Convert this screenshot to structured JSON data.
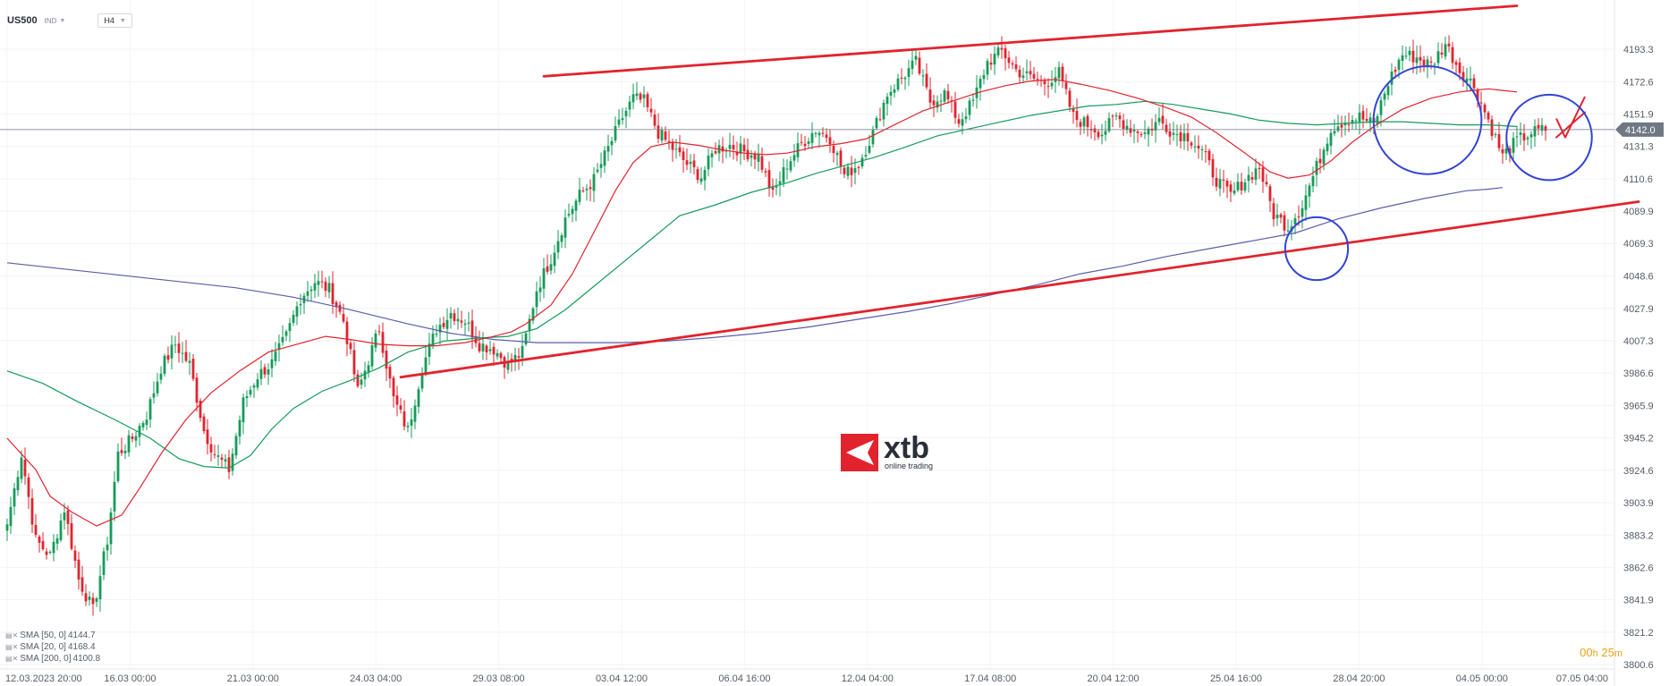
{
  "toolbar": {
    "symbol": "US500",
    "instrument_type": "IND",
    "timeframe": "H4"
  },
  "legend": [
    {
      "label": "SMA [50, 0]",
      "value": "4144.7",
      "color": "#169b5a"
    },
    {
      "label": "SMA [20, 0]",
      "value": "4168.4",
      "color": "#e1232e"
    },
    {
      "label": "SMA [200, 0]",
      "value": "4100.8",
      "color": "#5a5eaa"
    }
  ],
  "watermark": {
    "brand": "xtb",
    "tagline": "online trading",
    "color": "#e1232e"
  },
  "countdown": {
    "hours": "00",
    "hours_unit": "h",
    "minutes": "25",
    "minutes_unit": "m"
  },
  "chart_data": {
    "type": "candlestick",
    "title": "",
    "xlabel": "",
    "ylabel": "",
    "ylim": [
      3800.6,
      4214.0
    ],
    "y_ticks": [
      "4193.3",
      "4172.6",
      "4151.9",
      "4131.3",
      "4110.6",
      "4089.9",
      "4069.3",
      "4048.6",
      "4027.9",
      "4007.3",
      "3986.6",
      "3965.9",
      "3945.2",
      "3924.6",
      "3903.9",
      "3883.2",
      "3862.6",
      "3841.9",
      "3821.2",
      "3800.6"
    ],
    "x_tick_labels": [
      "12.03.2023  20:00",
      "16.03  00:00",
      "21.03  00:00",
      "24.03  04:00",
      "29.03  08:00",
      "03.04  12:00",
      "06.04  16:00",
      "12.04  04:00",
      "17.04  08:00",
      "20.04  12:00",
      "25.04  16:00",
      "28.04  20:00",
      "04.05  00:00",
      "07.05  04:00"
    ],
    "current_price": "4142.0",
    "current_price_value": 4142.0,
    "colors": {
      "up": "#169b5a",
      "down": "#e1232e",
      "trendline": "#e1232e",
      "circle": "#3144d4",
      "sma20": "#e1232e",
      "sma50": "#169b5a",
      "sma200": "#5a5eaa"
    },
    "close_path": [
      [
        0,
        3890
      ],
      [
        4,
        3935
      ],
      [
        8,
        3880
      ],
      [
        12,
        3870
      ],
      [
        16,
        3900
      ],
      [
        20,
        3855
      ],
      [
        24,
        3835
      ],
      [
        28,
        3880
      ],
      [
        31,
        3935
      ],
      [
        35,
        3945
      ],
      [
        39,
        3960
      ],
      [
        43,
        3990
      ],
      [
        47,
        4005
      ],
      [
        51,
        3992
      ],
      [
        55,
        3950
      ],
      [
        58,
        3935
      ],
      [
        62,
        3925
      ],
      [
        66,
        3968
      ],
      [
        70,
        3985
      ],
      [
        74,
        3993
      ],
      [
        78,
        4010
      ],
      [
        82,
        4035
      ],
      [
        86,
        4045
      ],
      [
        90,
        4040
      ],
      [
        94,
        4020
      ],
      [
        98,
        3975
      ],
      [
        101,
        3995
      ],
      [
        104,
        4015
      ],
      [
        108,
        3970
      ],
      [
        112,
        3950
      ],
      [
        116,
        3990
      ],
      [
        120,
        4015
      ],
      [
        124,
        4025
      ],
      [
        128,
        4020
      ],
      [
        132,
        4005
      ],
      [
        136,
        4002
      ],
      [
        140,
        3992
      ],
      [
        144,
        4000
      ],
      [
        148,
        4040
      ],
      [
        152,
        4060
      ],
      [
        156,
        4085
      ],
      [
        160,
        4100
      ],
      [
        164,
        4110
      ],
      [
        168,
        4130
      ],
      [
        172,
        4150
      ],
      [
        175,
        4162
      ],
      [
        178,
        4160
      ],
      [
        182,
        4140
      ],
      [
        186,
        4130
      ],
      [
        190,
        4120
      ],
      [
        194,
        4112
      ],
      [
        198,
        4130
      ],
      [
        202,
        4132
      ],
      [
        206,
        4128
      ],
      [
        210,
        4125
      ],
      [
        214,
        4100
      ],
      [
        218,
        4120
      ],
      [
        222,
        4133
      ],
      [
        226,
        4142
      ],
      [
        230,
        4137
      ],
      [
        234,
        4113
      ],
      [
        238,
        4120
      ],
      [
        242,
        4140
      ],
      [
        246,
        4165
      ],
      [
        250,
        4175
      ],
      [
        254,
        4185
      ],
      [
        258,
        4160
      ],
      [
        262,
        4165
      ],
      [
        266,
        4147
      ],
      [
        270,
        4160
      ],
      [
        274,
        4185
      ],
      [
        278,
        4192
      ],
      [
        282,
        4180
      ],
      [
        286,
        4175
      ],
      [
        290,
        4172
      ],
      [
        294,
        4178
      ],
      [
        298,
        4150
      ],
      [
        302,
        4145
      ],
      [
        306,
        4140
      ],
      [
        310,
        4150
      ],
      [
        314,
        4143
      ],
      [
        318,
        4140
      ],
      [
        322,
        4148
      ],
      [
        326,
        4140
      ],
      [
        330,
        4138
      ],
      [
        334,
        4128
      ],
      [
        338,
        4110
      ],
      [
        342,
        4100
      ],
      [
        346,
        4110
      ],
      [
        350,
        4118
      ],
      [
        354,
        4088
      ],
      [
        358,
        4080
      ],
      [
        362,
        4094
      ],
      [
        366,
        4118
      ],
      [
        370,
        4143
      ],
      [
        374,
        4148
      ],
      [
        378,
        4150
      ],
      [
        382,
        4145
      ],
      [
        386,
        4172
      ],
      [
        390,
        4190
      ],
      [
        394,
        4188
      ],
      [
        398,
        4183
      ],
      [
        402,
        4197
      ],
      [
        406,
        4180
      ],
      [
        410,
        4170
      ],
      [
        414,
        4148
      ],
      [
        418,
        4125
      ],
      [
        422,
        4135
      ],
      [
        426,
        4140
      ],
      [
        430,
        4142
      ]
    ],
    "candle_count": 431,
    "sma20": [
      [
        0,
        3945
      ],
      [
        8,
        3925
      ],
      [
        12,
        3908
      ],
      [
        18,
        3898
      ],
      [
        25,
        3889
      ],
      [
        32,
        3896
      ],
      [
        37,
        3913
      ],
      [
        43,
        3935
      ],
      [
        50,
        3957
      ],
      [
        57,
        3974
      ],
      [
        65,
        3988
      ],
      [
        73,
        4000
      ],
      [
        81,
        4005
      ],
      [
        89,
        4010
      ],
      [
        96,
        4008
      ],
      [
        104,
        4005
      ],
      [
        112,
        4004
      ],
      [
        120,
        4004
      ],
      [
        128,
        4006
      ],
      [
        136,
        4010
      ],
      [
        141,
        4013
      ],
      [
        145,
        4018
      ],
      [
        152,
        4030
      ],
      [
        158,
        4050
      ],
      [
        163,
        4072
      ],
      [
        170,
        4103
      ],
      [
        175,
        4121
      ],
      [
        180,
        4131
      ],
      [
        186,
        4134
      ],
      [
        193,
        4132
      ],
      [
        200,
        4129
      ],
      [
        206,
        4127
      ],
      [
        212,
        4126
      ],
      [
        218,
        4127
      ],
      [
        226,
        4131
      ],
      [
        233,
        4133
      ],
      [
        240,
        4136
      ],
      [
        248,
        4145
      ],
      [
        256,
        4154
      ],
      [
        264,
        4160
      ],
      [
        272,
        4166
      ],
      [
        279,
        4170
      ],
      [
        286,
        4173
      ],
      [
        293,
        4174
      ],
      [
        300,
        4171
      ],
      [
        308,
        4167
      ],
      [
        316,
        4162
      ],
      [
        324,
        4156
      ],
      [
        331,
        4150
      ],
      [
        338,
        4140
      ],
      [
        346,
        4127
      ],
      [
        353,
        4115
      ],
      [
        358,
        4111
      ],
      [
        364,
        4113
      ],
      [
        370,
        4122
      ],
      [
        376,
        4134
      ],
      [
        382,
        4144
      ],
      [
        390,
        4155
      ],
      [
        398,
        4162
      ],
      [
        406,
        4166
      ],
      [
        414,
        4168
      ],
      [
        418,
        4167
      ],
      [
        422,
        4166
      ]
    ],
    "sma50": [
      [
        0,
        3988
      ],
      [
        10,
        3980
      ],
      [
        20,
        3968
      ],
      [
        30,
        3957
      ],
      [
        40,
        3945
      ],
      [
        48,
        3932
      ],
      [
        55,
        3927
      ],
      [
        62,
        3926
      ],
      [
        68,
        3934
      ],
      [
        74,
        3951
      ],
      [
        80,
        3964
      ],
      [
        88,
        3975
      ],
      [
        96,
        3982
      ],
      [
        104,
        3990
      ],
      [
        112,
        4000
      ],
      [
        122,
        4007
      ],
      [
        132,
        4009
      ],
      [
        140,
        4010
      ],
      [
        148,
        4015
      ],
      [
        156,
        4027
      ],
      [
        164,
        4042
      ],
      [
        172,
        4057
      ],
      [
        180,
        4072
      ],
      [
        188,
        4087
      ],
      [
        198,
        4094
      ],
      [
        208,
        4102
      ],
      [
        218,
        4108
      ],
      [
        226,
        4114
      ],
      [
        234,
        4119
      ],
      [
        242,
        4124
      ],
      [
        250,
        4130
      ],
      [
        260,
        4138
      ],
      [
        270,
        4143
      ],
      [
        278,
        4147
      ],
      [
        286,
        4151
      ],
      [
        294,
        4154
      ],
      [
        302,
        4157
      ],
      [
        310,
        4158
      ],
      [
        318,
        4160
      ],
      [
        326,
        4158
      ],
      [
        334,
        4155
      ],
      [
        342,
        4152
      ],
      [
        350,
        4148
      ],
      [
        358,
        4146
      ],
      [
        366,
        4145
      ],
      [
        374,
        4146
      ],
      [
        382,
        4147
      ],
      [
        390,
        4147
      ],
      [
        398,
        4146
      ],
      [
        406,
        4145
      ],
      [
        414,
        4145
      ],
      [
        422,
        4144
      ]
    ],
    "sma200": [
      [
        0,
        4057
      ],
      [
        16,
        4053
      ],
      [
        32,
        4049
      ],
      [
        48,
        4045
      ],
      [
        64,
        4041
      ],
      [
        80,
        4035
      ],
      [
        96,
        4027
      ],
      [
        112,
        4018
      ],
      [
        124,
        4012
      ],
      [
        136,
        4008
      ],
      [
        148,
        4006
      ],
      [
        160,
        4006
      ],
      [
        172,
        4006
      ],
      [
        184,
        4007
      ],
      [
        196,
        4009
      ],
      [
        210,
        4012
      ],
      [
        224,
        4016
      ],
      [
        238,
        4021
      ],
      [
        252,
        4026
      ],
      [
        264,
        4031
      ],
      [
        276,
        4037
      ],
      [
        288,
        4043
      ],
      [
        300,
        4050
      ],
      [
        312,
        4055
      ],
      [
        324,
        4061
      ],
      [
        336,
        4066
      ],
      [
        348,
        4071
      ],
      [
        360,
        4076
      ],
      [
        372,
        4085
      ],
      [
        384,
        4092
      ],
      [
        396,
        4098
      ],
      [
        408,
        4103
      ],
      [
        414,
        4104
      ],
      [
        418,
        4105
      ]
    ],
    "trendlines": [
      {
        "name": "upper-channel",
        "from": [
          150,
          4176
        ],
        "to": [
          422,
          4221
        ]
      },
      {
        "name": "lower-channel",
        "from": [
          110,
          3984
        ],
        "to": [
          456,
          4096
        ]
      },
      {
        "name": "mini-bounce",
        "from": [
          433,
          4137
        ],
        "to": [
          441,
          4153
        ]
      }
    ],
    "circle_marks": [
      {
        "name": "circle-support-touch",
        "at": [
          366,
          4066
        ],
        "r_value": 11
      },
      {
        "name": "circle-sma-retest",
        "at": [
          397,
          4148
        ],
        "r_value": 23
      },
      {
        "name": "circle-recent",
        "at": [
          431,
          4137
        ],
        "r_value": 17
      }
    ]
  }
}
